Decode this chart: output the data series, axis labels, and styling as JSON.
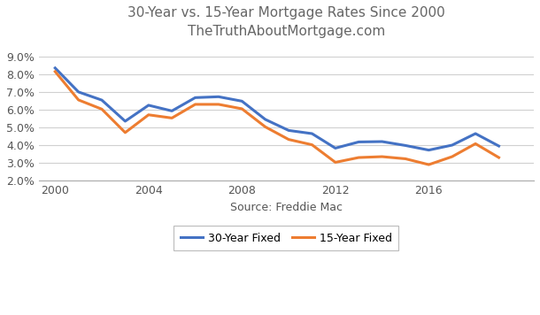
{
  "title_line1": "30-Year vs. 15-Year Mortgage Rates Since 2000",
  "title_line2": "TheTruthAboutMortgage.com",
  "xlabel": "Source: Freddie Mac",
  "years_30": [
    2000,
    2001,
    2002,
    2003,
    2004,
    2005,
    2006,
    2007,
    2008,
    2009,
    2010,
    2011,
    2012,
    2013,
    2014,
    2015,
    2016,
    2017,
    2018,
    2019
  ],
  "rates_30": [
    8.35,
    7.0,
    6.54,
    5.35,
    6.25,
    5.93,
    6.68,
    6.73,
    6.48,
    5.45,
    4.83,
    4.65,
    3.83,
    4.18,
    4.2,
    3.98,
    3.72,
    4.0,
    4.65,
    3.95
  ],
  "years_15": [
    2000,
    2001,
    2002,
    2003,
    2004,
    2005,
    2006,
    2007,
    2008,
    2009,
    2010,
    2011,
    2012,
    2013,
    2014,
    2015,
    2016,
    2017,
    2018,
    2019
  ],
  "rates_15": [
    8.15,
    6.55,
    6.03,
    4.71,
    5.71,
    5.53,
    6.3,
    6.3,
    6.05,
    5.03,
    4.32,
    4.02,
    3.03,
    3.3,
    3.35,
    3.23,
    2.9,
    3.35,
    4.08,
    3.3
  ],
  "color_30": "#4472C4",
  "color_15": "#ED7D31",
  "ylim_min": 2.0,
  "ylim_max": 9.5,
  "yticks": [
    2.0,
    3.0,
    4.0,
    5.0,
    6.0,
    7.0,
    8.0,
    9.0
  ],
  "xticks": [
    2000,
    2004,
    2008,
    2012,
    2016
  ],
  "legend_30": "30-Year Fixed",
  "legend_15": "15-Year Fixed",
  "bg_color": "#ffffff",
  "grid_color": "#d0d0d0",
  "title_color": "#666666",
  "tick_label_color": "#555555"
}
